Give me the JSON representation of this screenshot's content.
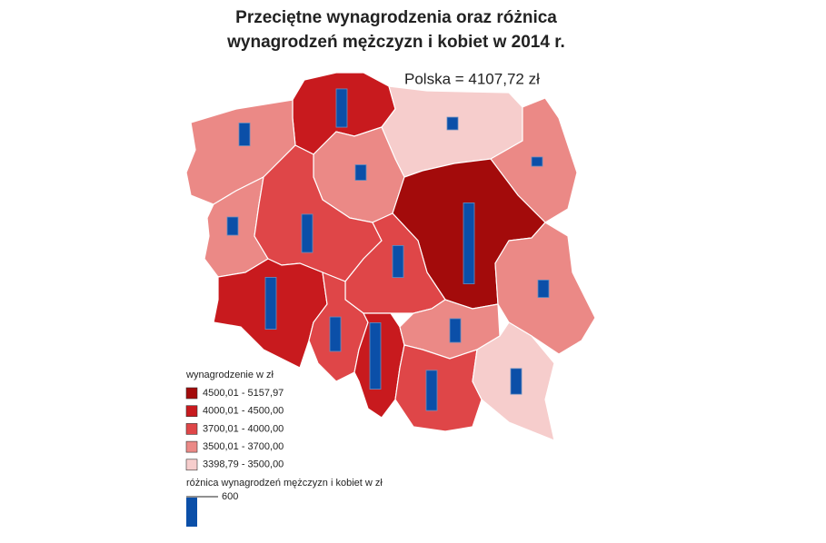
{
  "title": [
    "Przeciętne wynagrodzenia oraz różnica",
    "wynagrodzeń mężczyzn i kobiet w 2014 r."
  ],
  "note": "Polska = 4107,72 zł",
  "legend": {
    "title": "wynagrodzenie w zł",
    "classes": [
      {
        "label": "4500,01 - 5157,97",
        "color": "#a30b0b"
      },
      {
        "label": "4000,01 - 4500,00",
        "color": "#c81a1e"
      },
      {
        "label": "3700,01 - 4000,00",
        "color": "#df4648"
      },
      {
        "label": "3500,01 - 3700,00",
        "color": "#eb8986"
      },
      {
        "label": "3398,79 - 3500,00",
        "color": "#f6cdcc"
      }
    ],
    "gap_title": "różnica wynagrodzeń mężczyzn i kobiet w zł",
    "gap_scale": 600,
    "bar_color": "#0b4fa8"
  },
  "map": {
    "regions": [
      {
        "class": 1,
        "gap": 790
      },
      {
        "class": 3,
        "gap": 470
      },
      {
        "class": 4,
        "gap": 260
      },
      {
        "class": 3,
        "gap": 190
      },
      {
        "class": 3,
        "gap": 320
      },
      {
        "class": 3,
        "gap": 375
      },
      {
        "class": 2,
        "gap": 790
      },
      {
        "class": 0,
        "gap": 1670
      },
      {
        "class": 2,
        "gap": 660
      },
      {
        "class": 3,
        "gap": 360
      },
      {
        "class": 1,
        "gap": 1070
      },
      {
        "class": 2,
        "gap": 710
      },
      {
        "class": 1,
        "gap": 1370
      },
      {
        "class": 3,
        "gap": 490
      },
      {
        "class": 2,
        "gap": 830
      },
      {
        "class": 4,
        "gap": 530
      }
    ]
  }
}
